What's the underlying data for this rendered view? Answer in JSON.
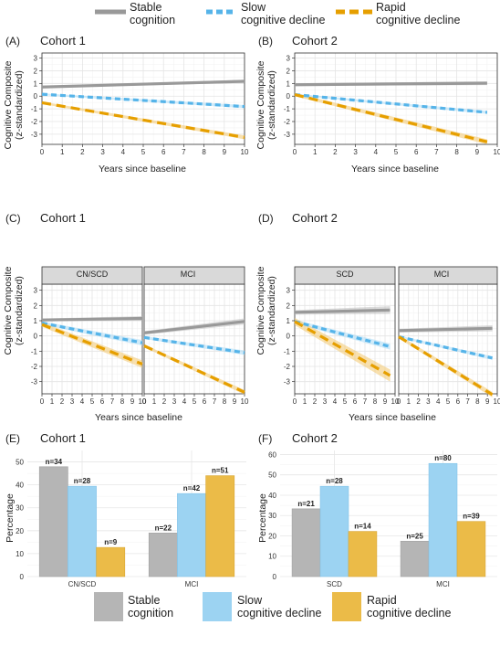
{
  "legend": {
    "items": [
      {
        "line1": "Stable",
        "line2": "cognition",
        "color": "#999999",
        "dash": false
      },
      {
        "line1": "Slow",
        "line2": "cognitive decline",
        "color": "#56B4E9",
        "dash": true
      },
      {
        "line1": "Rapid",
        "line2": "cognitive decline",
        "color": "#E69F00",
        "dash": true
      }
    ]
  },
  "panels": {
    "A": {
      "label": "(A)",
      "title": "Cohort 1"
    },
    "B": {
      "label": "(B)",
      "title": "Cohort 2"
    },
    "C": {
      "label": "(C)",
      "title": "Cohort 1",
      "facets": [
        "CN/SCD",
        "MCI"
      ]
    },
    "D": {
      "label": "(D)",
      "title": "Cohort 2",
      "facets": [
        "SCD",
        "MCI"
      ]
    },
    "E": {
      "label": "(E)",
      "title": "Cohort 1"
    },
    "F": {
      "label": "(F)",
      "title": "Cohort 2"
    }
  },
  "axes": {
    "traj_ylabel_1": "Cognitive Composite",
    "traj_ylabel_2": "(z-standardized)",
    "traj_xlabel": "Years since baseline",
    "bar_ylabel": "Percentage"
  },
  "chart_data": [
    {
      "id": "A",
      "type": "line",
      "title": "Cohort 1",
      "xlabel": "Years since baseline",
      "ylabel": "Cognitive Composite (z-standardized)",
      "xlim": [
        0,
        10
      ],
      "ylim": [
        -3.8,
        3.4
      ],
      "xticks": [
        0,
        1,
        2,
        3,
        4,
        5,
        6,
        7,
        8,
        9,
        10
      ],
      "yticks": [
        3,
        2,
        1,
        0,
        -1,
        -2,
        -3
      ],
      "series": [
        {
          "name": "Stable cognition",
          "x": [
            0,
            10
          ],
          "y": [
            0.72,
            1.17
          ],
          "band": 0.12
        },
        {
          "name": "Slow cognitive decline",
          "x": [
            0,
            10
          ],
          "y": [
            0.15,
            -0.82
          ],
          "band": 0.12
        },
        {
          "name": "Rapid cognitive decline",
          "x": [
            0,
            10
          ],
          "y": [
            -0.52,
            -3.25
          ],
          "band": 0.15
        }
      ]
    },
    {
      "id": "B",
      "type": "line",
      "title": "Cohort 2",
      "xlabel": "Years since baseline",
      "ylabel": "Cognitive Composite (z-standardized)",
      "xlim": [
        0,
        10
      ],
      "ylim": [
        -3.8,
        3.4
      ],
      "xticks": [
        0,
        1,
        2,
        3,
        4,
        5,
        6,
        7,
        8,
        9,
        10
      ],
      "yticks": [
        3,
        2,
        1,
        0,
        -1,
        -2,
        -3
      ],
      "series": [
        {
          "name": "Stable cognition",
          "x": [
            0,
            9.5
          ],
          "y": [
            0.9,
            1.02
          ],
          "band": 0.15
        },
        {
          "name": "Slow cognitive decline",
          "x": [
            0,
            9.5
          ],
          "y": [
            0.12,
            -1.28
          ],
          "band": 0.12
        },
        {
          "name": "Rapid cognitive decline",
          "x": [
            0,
            9.5
          ],
          "y": [
            0.12,
            -3.6
          ],
          "band": 0.2
        }
      ]
    },
    {
      "id": "C",
      "type": "line",
      "title": "Cohort 1",
      "xlabel": "Years since baseline",
      "ylabel": "Cognitive Composite (z-standardized)",
      "xlim": [
        0,
        10
      ],
      "ylim": [
        -3.8,
        3.4
      ],
      "xticks": [
        0,
        1,
        2,
        3,
        4,
        5,
        6,
        7,
        8,
        9,
        10
      ],
      "yticks": [
        3,
        2,
        1,
        0,
        -1,
        -2,
        -3
      ],
      "facets": [
        {
          "name": "CN/SCD",
          "series": [
            {
              "name": "Stable cognition",
              "x": [
                0,
                10
              ],
              "y": [
                1.05,
                1.15
              ],
              "band": 0.15
            },
            {
              "name": "Slow cognitive decline",
              "x": [
                0,
                10
              ],
              "y": [
                0.85,
                -0.45
              ],
              "band": 0.18
            },
            {
              "name": "Rapid cognitive decline",
              "x": [
                0,
                10
              ],
              "y": [
                0.75,
                -1.85
              ],
              "band": 0.25
            }
          ]
        },
        {
          "name": "MCI",
          "series": [
            {
              "name": "Stable cognition",
              "x": [
                0,
                10
              ],
              "y": [
                0.2,
                0.95
              ],
              "band": 0.2
            },
            {
              "name": "Slow cognitive decline",
              "x": [
                0,
                10
              ],
              "y": [
                -0.1,
                -1.1
              ],
              "band": 0.15
            },
            {
              "name": "Rapid cognitive decline",
              "x": [
                0,
                10
              ],
              "y": [
                -0.65,
                -3.7
              ],
              "band": 0.15
            }
          ]
        }
      ]
    },
    {
      "id": "D",
      "type": "line",
      "title": "Cohort 2",
      "xlabel": "Years since baseline",
      "ylabel": "Cognitive Composite (z-standardized)",
      "xlim": [
        0,
        10
      ],
      "ylim": [
        -3.8,
        3.4
      ],
      "xticks": [
        0,
        1,
        2,
        3,
        4,
        5,
        6,
        7,
        8,
        9,
        10
      ],
      "yticks": [
        3,
        2,
        1,
        0,
        -1,
        -2,
        -3
      ],
      "facets": [
        {
          "name": "SCD",
          "series": [
            {
              "name": "Stable cognition",
              "x": [
                0,
                9.5
              ],
              "y": [
                1.55,
                1.7
              ],
              "band": 0.25
            },
            {
              "name": "Slow cognitive decline",
              "x": [
                0,
                9.5
              ],
              "y": [
                0.95,
                -0.7
              ],
              "band": 0.2
            },
            {
              "name": "Rapid cognitive decline",
              "x": [
                0,
                9.5
              ],
              "y": [
                0.95,
                -2.6
              ],
              "band": 0.4
            }
          ]
        },
        {
          "name": "MCI",
          "series": [
            {
              "name": "Stable cognition",
              "x": [
                0,
                9.5
              ],
              "y": [
                0.35,
                0.5
              ],
              "band": 0.2
            },
            {
              "name": "Slow cognitive decline",
              "x": [
                0,
                9.5
              ],
              "y": [
                -0.05,
                -1.45
              ],
              "band": 0.12
            },
            {
              "name": "Rapid cognitive decline",
              "x": [
                0,
                9.5
              ],
              "y": [
                -0.05,
                -3.85
              ],
              "band": 0.18
            }
          ]
        }
      ]
    },
    {
      "id": "E",
      "type": "bar",
      "title": "Cohort 1",
      "ylabel": "Percentage",
      "ylim": [
        0,
        55
      ],
      "yticks": [
        0,
        10,
        20,
        30,
        40,
        50
      ],
      "categories": [
        "CN/SCD",
        "MCI"
      ],
      "series": [
        {
          "name": "Stable cognition",
          "values": [
            47.9,
            19
          ],
          "labels": [
            "n=34",
            "n=22"
          ]
        },
        {
          "name": "Slow cognitive decline",
          "values": [
            39.4,
            36.2
          ],
          "labels": [
            "n=28",
            "n=42"
          ]
        },
        {
          "name": "Rapid cognitive decline",
          "values": [
            12.7,
            44
          ],
          "labels": [
            "n=9",
            "n=51"
          ]
        }
      ]
    },
    {
      "id": "F",
      "type": "bar",
      "title": "Cohort 2",
      "ylabel": "Percentage",
      "ylim": [
        0,
        62
      ],
      "yticks": [
        0,
        10,
        20,
        30,
        40,
        50,
        60
      ],
      "categories": [
        "SCD",
        "MCI"
      ],
      "series": [
        {
          "name": "Stable cognition",
          "values": [
            33.3,
            17.4
          ],
          "labels": [
            "n=21",
            "n=25"
          ]
        },
        {
          "name": "Slow cognitive decline",
          "values": [
            44.4,
            55.6
          ],
          "labels": [
            "n=28",
            "n=80"
          ]
        },
        {
          "name": "Rapid cognitive decline",
          "values": [
            22.2,
            27.1
          ],
          "labels": [
            "n=14",
            "n=39"
          ]
        }
      ]
    }
  ]
}
